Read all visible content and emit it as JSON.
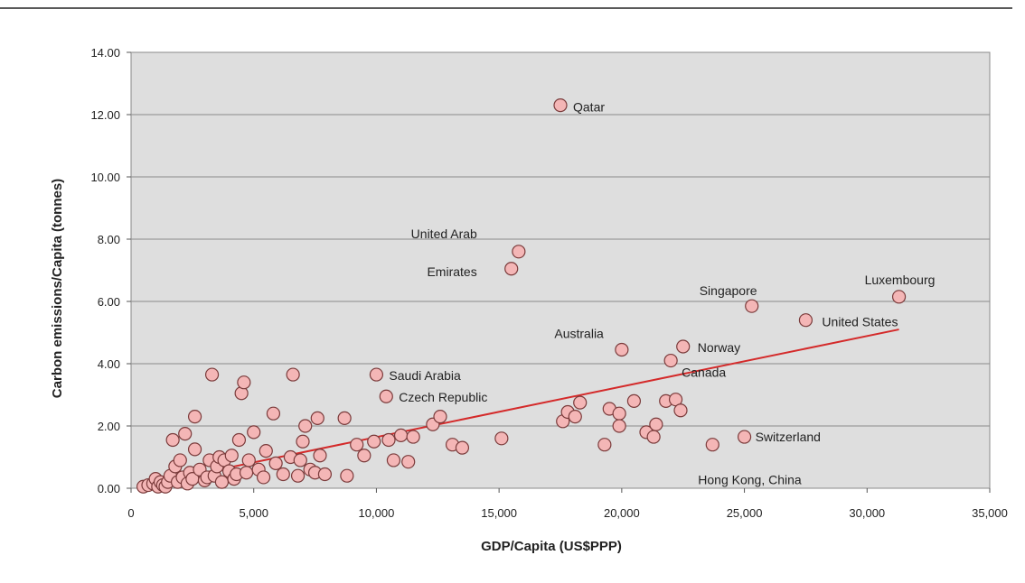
{
  "chart_data": {
    "type": "scatter",
    "xlabel": "GDP/Capita (US$PPP)",
    "ylabel": "Carbon emissions/Capita (tonnes)",
    "xlim": [
      0,
      35000
    ],
    "ylim": [
      0,
      14
    ],
    "x_ticks": [
      "0",
      "5,000",
      "10,000",
      "15,000",
      "20,000",
      "25,000",
      "30,000",
      "35,000"
    ],
    "y_ticks": [
      "0.00",
      "2.00",
      "4.00",
      "6.00",
      "8.00",
      "10.00",
      "12.00",
      "14.00"
    ],
    "grid": "horizontal",
    "marker_color": "#f4b6b6",
    "trendline_color": "#d42a2a",
    "plot_background": "#dedede",
    "trendline": {
      "x": [
        500,
        31300
      ],
      "y": [
        0.1,
        5.1
      ]
    },
    "labeled_points": [
      {
        "label": "Qatar",
        "x": 17500,
        "y": 12.3
      },
      {
        "label": "United Arab",
        "x": 15800,
        "y": 7.6
      },
      {
        "label": "Emirates",
        "x": 15500,
        "y": 7.05
      },
      {
        "label": "Luxembourg",
        "x": 31300,
        "y": 6.15
      },
      {
        "label": "Singapore",
        "x": 25300,
        "y": 5.85
      },
      {
        "label": "United States",
        "x": 27500,
        "y": 5.4
      },
      {
        "label": "Australia",
        "x": 20000,
        "y": 4.45
      },
      {
        "label": "Norway",
        "x": 22500,
        "y": 4.55
      },
      {
        "label": "Canada",
        "x": 22000,
        "y": 4.1
      },
      {
        "label": "Saudi Arabia",
        "x": 10000,
        "y": 3.65
      },
      {
        "label": "Czech Republic",
        "x": 10400,
        "y": 2.95
      },
      {
        "label": "Switzerland",
        "x": 25000,
        "y": 1.65
      },
      {
        "label": "Hong Kong, China",
        "x": 23700,
        "y": 1.4
      }
    ],
    "points": [
      {
        "x": 500,
        "y": 0.05
      },
      {
        "x": 700,
        "y": 0.1
      },
      {
        "x": 900,
        "y": 0.15
      },
      {
        "x": 1000,
        "y": 0.3
      },
      {
        "x": 1100,
        "y": 0.05
      },
      {
        "x": 1200,
        "y": 0.2
      },
      {
        "x": 1300,
        "y": 0.1
      },
      {
        "x": 1400,
        "y": 0.05
      },
      {
        "x": 1500,
        "y": 0.2
      },
      {
        "x": 1600,
        "y": 0.4
      },
      {
        "x": 1700,
        "y": 1.55
      },
      {
        "x": 1800,
        "y": 0.7
      },
      {
        "x": 1900,
        "y": 0.2
      },
      {
        "x": 2000,
        "y": 0.9
      },
      {
        "x": 2100,
        "y": 0.35
      },
      {
        "x": 2200,
        "y": 1.75
      },
      {
        "x": 2300,
        "y": 0.15
      },
      {
        "x": 2400,
        "y": 0.5
      },
      {
        "x": 2500,
        "y": 0.3
      },
      {
        "x": 2600,
        "y": 1.25
      },
      {
        "x": 2600,
        "y": 2.3
      },
      {
        "x": 2800,
        "y": 0.6
      },
      {
        "x": 3000,
        "y": 0.25
      },
      {
        "x": 3100,
        "y": 0.35
      },
      {
        "x": 3200,
        "y": 0.9
      },
      {
        "x": 3300,
        "y": 3.65
      },
      {
        "x": 3400,
        "y": 0.4
      },
      {
        "x": 3500,
        "y": 0.7
      },
      {
        "x": 3600,
        "y": 1.0
      },
      {
        "x": 3700,
        "y": 0.2
      },
      {
        "x": 3800,
        "y": 0.9
      },
      {
        "x": 4000,
        "y": 0.55
      },
      {
        "x": 4100,
        "y": 1.05
      },
      {
        "x": 4200,
        "y": 0.3
      },
      {
        "x": 4300,
        "y": 0.45
      },
      {
        "x": 4400,
        "y": 1.55
      },
      {
        "x": 4500,
        "y": 3.05
      },
      {
        "x": 4600,
        "y": 3.4
      },
      {
        "x": 4700,
        "y": 0.5
      },
      {
        "x": 4800,
        "y": 0.9
      },
      {
        "x": 5000,
        "y": 1.8
      },
      {
        "x": 5200,
        "y": 0.6
      },
      {
        "x": 5400,
        "y": 0.35
      },
      {
        "x": 5500,
        "y": 1.2
      },
      {
        "x": 5800,
        "y": 2.4
      },
      {
        "x": 5900,
        "y": 0.8
      },
      {
        "x": 6200,
        "y": 0.45
      },
      {
        "x": 6500,
        "y": 1.0
      },
      {
        "x": 6600,
        "y": 3.65
      },
      {
        "x": 6800,
        "y": 0.4
      },
      {
        "x": 6900,
        "y": 0.9
      },
      {
        "x": 7000,
        "y": 1.5
      },
      {
        "x": 7100,
        "y": 2.0
      },
      {
        "x": 7300,
        "y": 0.6
      },
      {
        "x": 7500,
        "y": 0.5
      },
      {
        "x": 7600,
        "y": 2.25
      },
      {
        "x": 7700,
        "y": 1.05
      },
      {
        "x": 7900,
        "y": 0.45
      },
      {
        "x": 8700,
        "y": 2.25
      },
      {
        "x": 8800,
        "y": 0.4
      },
      {
        "x": 9200,
        "y": 1.4
      },
      {
        "x": 9500,
        "y": 1.05
      },
      {
        "x": 9900,
        "y": 1.5
      },
      {
        "x": 10500,
        "y": 1.55
      },
      {
        "x": 10700,
        "y": 0.9
      },
      {
        "x": 11000,
        "y": 1.7
      },
      {
        "x": 11300,
        "y": 0.85
      },
      {
        "x": 11500,
        "y": 1.65
      },
      {
        "x": 12300,
        "y": 2.05
      },
      {
        "x": 12600,
        "y": 2.3
      },
      {
        "x": 13100,
        "y": 1.4
      },
      {
        "x": 13500,
        "y": 1.3
      },
      {
        "x": 15100,
        "y": 1.6
      },
      {
        "x": 17600,
        "y": 2.15
      },
      {
        "x": 17800,
        "y": 2.45
      },
      {
        "x": 18100,
        "y": 2.3
      },
      {
        "x": 18300,
        "y": 2.75
      },
      {
        "x": 19300,
        "y": 1.4
      },
      {
        "x": 19500,
        "y": 2.55
      },
      {
        "x": 19900,
        "y": 2.4
      },
      {
        "x": 19900,
        "y": 2.0
      },
      {
        "x": 20500,
        "y": 2.8
      },
      {
        "x": 21000,
        "y": 1.8
      },
      {
        "x": 21300,
        "y": 1.65
      },
      {
        "x": 21400,
        "y": 2.05
      },
      {
        "x": 21800,
        "y": 2.8
      },
      {
        "x": 22200,
        "y": 2.85
      },
      {
        "x": 22400,
        "y": 2.5
      },
      {
        "x": 17500,
        "y": 12.3
      },
      {
        "x": 15800,
        "y": 7.6
      },
      {
        "x": 15500,
        "y": 7.05
      },
      {
        "x": 31300,
        "y": 6.15
      },
      {
        "x": 25300,
        "y": 5.85
      },
      {
        "x": 27500,
        "y": 5.4
      },
      {
        "x": 20000,
        "y": 4.45
      },
      {
        "x": 22500,
        "y": 4.55
      },
      {
        "x": 22000,
        "y": 4.1
      },
      {
        "x": 10000,
        "y": 3.65
      },
      {
        "x": 10400,
        "y": 2.95
      },
      {
        "x": 25000,
        "y": 1.65
      },
      {
        "x": 23700,
        "y": 1.4
      }
    ]
  }
}
